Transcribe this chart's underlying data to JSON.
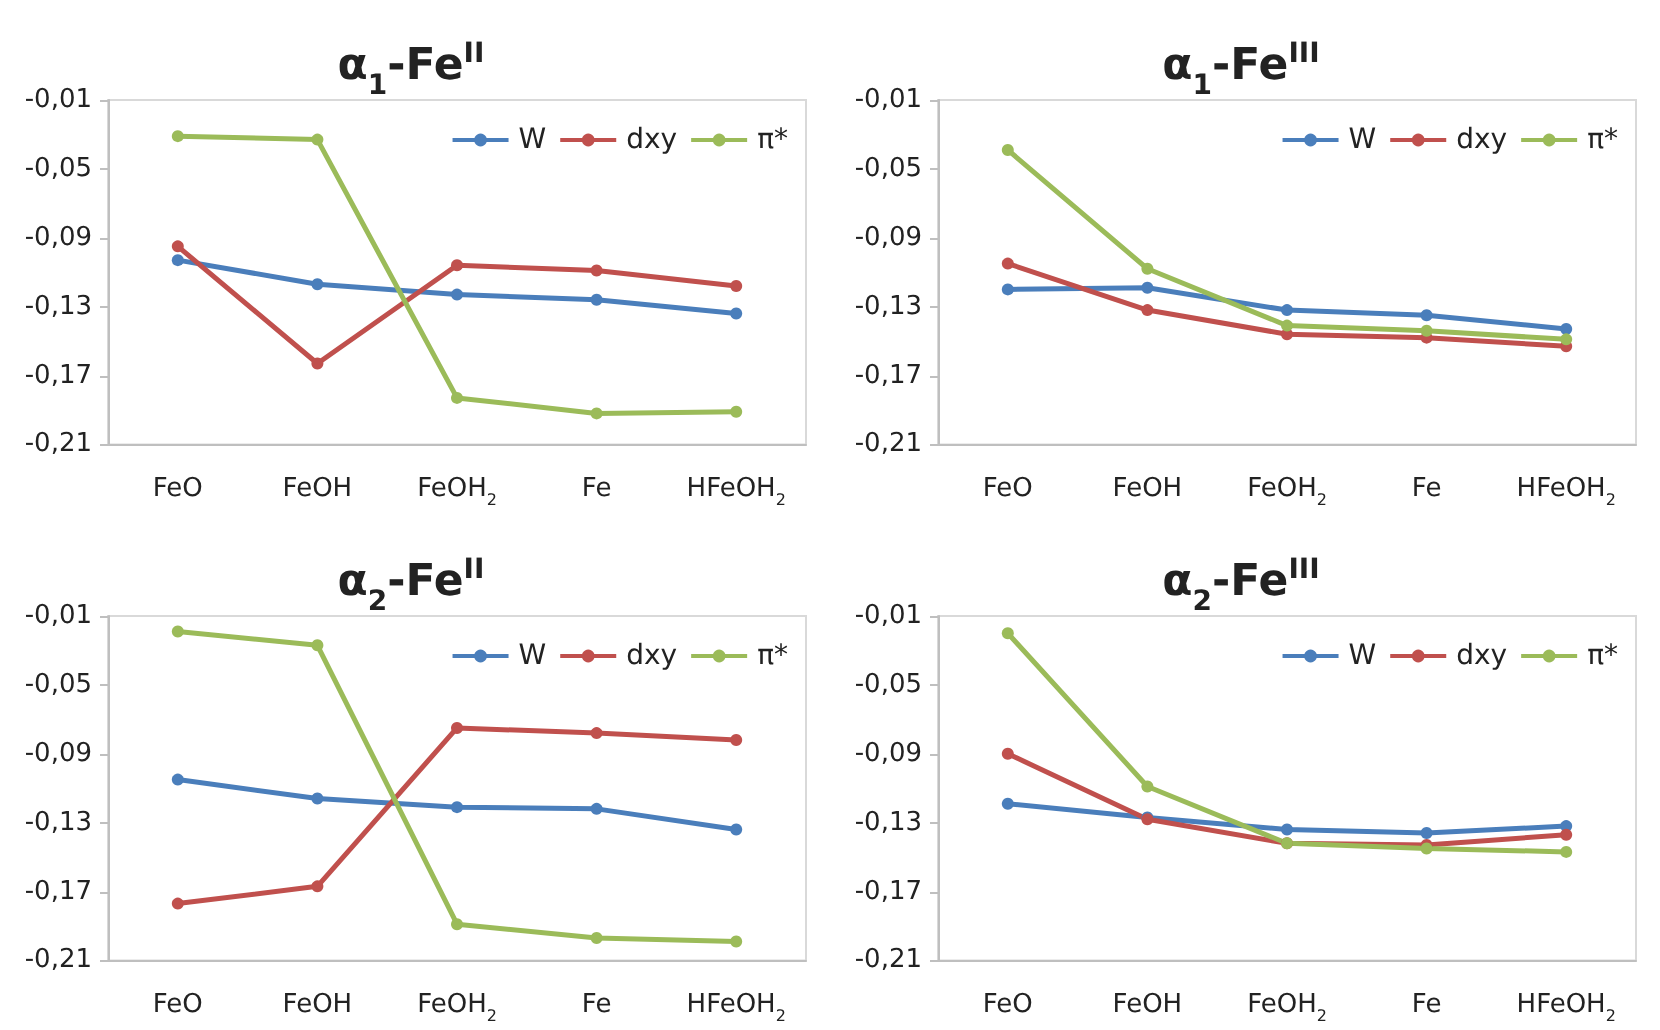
{
  "chart_data": [
    {
      "type": "line",
      "title": "α$_{1}$-Fe$^{II}$",
      "categories": [
        "FeO",
        "FeOH",
        "FeOH$_{2}$",
        "Fe",
        "HFeOH$_{2}$"
      ],
      "ylim": [
        -0.21,
        -0.01
      ],
      "yticks": [
        {
          "value": -0.21,
          "label": "-0,21"
        },
        {
          "value": -0.17,
          "label": "-0,17"
        },
        {
          "value": -0.13,
          "label": "-0,13"
        },
        {
          "value": -0.09,
          "label": "-0,09"
        },
        {
          "value": -0.05,
          "label": "-0,05"
        },
        {
          "value": -0.01,
          "label": "-0,01"
        }
      ],
      "grid": false,
      "legend": "top right",
      "marker": "circle",
      "series": [
        {
          "name": "W",
          "color": "#4a7ebb",
          "values": [
            -0.103,
            -0.117,
            -0.123,
            -0.126,
            -0.134
          ]
        },
        {
          "name": "dxy",
          "color": "#c0504d",
          "values": [
            -0.095,
            -0.163,
            -0.106,
            -0.109,
            -0.118
          ]
        },
        {
          "name": "π*",
          "color": "#9bbb59",
          "values": [
            -0.031,
            -0.033,
            -0.183,
            -0.192,
            -0.191
          ]
        }
      ]
    },
    {
      "type": "line",
      "title": "α$_{1}$-Fe$^{III}$",
      "categories": [
        "FeO",
        "FeOH",
        "FeOH$_{2}$",
        "Fe",
        "HFeOH$_{2}$"
      ],
      "ylim": [
        -0.21,
        -0.01
      ],
      "yticks": [
        {
          "value": -0.21,
          "label": "-0,21"
        },
        {
          "value": -0.17,
          "label": "-0,17"
        },
        {
          "value": -0.13,
          "label": "-0,13"
        },
        {
          "value": -0.09,
          "label": "-0,09"
        },
        {
          "value": -0.05,
          "label": "-0,05"
        },
        {
          "value": -0.01,
          "label": "-0,01"
        }
      ],
      "grid": false,
      "legend": "top right",
      "marker": "circle",
      "series": [
        {
          "name": "W",
          "color": "#4a7ebb",
          "values": [
            -0.12,
            -0.119,
            -0.132,
            -0.135,
            -0.143
          ]
        },
        {
          "name": "dxy",
          "color": "#c0504d",
          "values": [
            -0.105,
            -0.132,
            -0.146,
            -0.148,
            -0.153
          ]
        },
        {
          "name": "π*",
          "color": "#9bbb59",
          "values": [
            -0.039,
            -0.108,
            -0.141,
            -0.144,
            -0.149
          ]
        }
      ]
    },
    {
      "type": "line",
      "title": "α$_{2}$-Fe$^{II}$",
      "categories": [
        "FeO",
        "FeOH",
        "FeOH$_{2}$",
        "Fe",
        "HFeOH$_{2}$"
      ],
      "ylim": [
        -0.21,
        -0.01
      ],
      "yticks": [
        {
          "value": -0.21,
          "label": "-0,21"
        },
        {
          "value": -0.17,
          "label": "-0,17"
        },
        {
          "value": -0.13,
          "label": "-0,13"
        },
        {
          "value": -0.09,
          "label": "-0,09"
        },
        {
          "value": -0.05,
          "label": "-0,05"
        },
        {
          "value": -0.01,
          "label": "-0,01"
        }
      ],
      "grid": false,
      "legend": "top right",
      "marker": "circle",
      "series": [
        {
          "name": "W",
          "color": "#4a7ebb",
          "values": [
            -0.105,
            -0.116,
            -0.121,
            -0.122,
            -0.134
          ]
        },
        {
          "name": "dxy",
          "color": "#c0504d",
          "values": [
            -0.177,
            -0.167,
            -0.075,
            -0.078,
            -0.082
          ]
        },
        {
          "name": "π*",
          "color": "#9bbb59",
          "values": [
            -0.019,
            -0.027,
            -0.189,
            -0.197,
            -0.199
          ]
        }
      ]
    },
    {
      "type": "line",
      "title": "α$_{2}$-Fe$^{III}$",
      "categories": [
        "FeO",
        "FeOH",
        "FeOH$_{2}$",
        "Fe",
        "HFeOH$_{2}$"
      ],
      "ylim": [
        -0.21,
        -0.01
      ],
      "yticks": [
        {
          "value": -0.21,
          "label": "-0,21"
        },
        {
          "value": -0.17,
          "label": "-0,17"
        },
        {
          "value": -0.13,
          "label": "-0,13"
        },
        {
          "value": -0.09,
          "label": "-0,09"
        },
        {
          "value": -0.05,
          "label": "-0,05"
        },
        {
          "value": -0.01,
          "label": "-0,01"
        }
      ],
      "grid": false,
      "legend": "top right",
      "marker": "circle",
      "series": [
        {
          "name": "W",
          "color": "#4a7ebb",
          "values": [
            -0.119,
            -0.127,
            -0.134,
            -0.136,
            -0.132
          ]
        },
        {
          "name": "dxy",
          "color": "#c0504d",
          "values": [
            -0.09,
            -0.128,
            -0.142,
            -0.143,
            -0.137
          ]
        },
        {
          "name": "π*",
          "color": "#9bbb59",
          "values": [
            -0.02,
            -0.109,
            -0.142,
            -0.145,
            -0.147
          ]
        }
      ]
    }
  ]
}
